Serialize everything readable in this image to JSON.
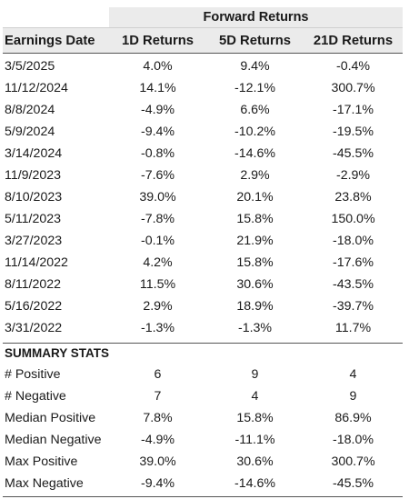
{
  "header": {
    "group_label": "Forward Returns",
    "columns": [
      "Earnings Date",
      "1D Returns",
      "5D Returns",
      "21D Returns"
    ]
  },
  "rows": [
    [
      "3/5/2025",
      "4.0%",
      "9.4%",
      "-0.4%"
    ],
    [
      "11/12/2024",
      "14.1%",
      "-12.1%",
      "300.7%"
    ],
    [
      "8/8/2024",
      "-4.9%",
      "6.6%",
      "-17.1%"
    ],
    [
      "5/9/2024",
      "-9.4%",
      "-10.2%",
      "-19.5%"
    ],
    [
      "3/14/2024",
      "-0.8%",
      "-14.6%",
      "-45.5%"
    ],
    [
      "11/9/2023",
      "-7.6%",
      "2.9%",
      "-2.9%"
    ],
    [
      "8/10/2023",
      "39.0%",
      "20.1%",
      "23.8%"
    ],
    [
      "5/11/2023",
      "-7.8%",
      "15.8%",
      "150.0%"
    ],
    [
      "3/27/2023",
      "-0.1%",
      "21.9%",
      "-18.0%"
    ],
    [
      "11/14/2022",
      "4.2%",
      "15.8%",
      "-17.6%"
    ],
    [
      "8/11/2022",
      "11.5%",
      "30.6%",
      "-43.5%"
    ],
    [
      "5/16/2022",
      "2.9%",
      "18.9%",
      "-39.7%"
    ],
    [
      "3/31/2022",
      "-1.3%",
      "-1.3%",
      "11.7%"
    ]
  ],
  "summary": {
    "title": "SUMMARY STATS",
    "rows": [
      [
        "# Positive",
        "6",
        "9",
        "4"
      ],
      [
        "# Negative",
        "7",
        "4",
        "9"
      ],
      [
        "Median Positive",
        "7.8%",
        "15.8%",
        "86.9%"
      ],
      [
        "Median Negative",
        "-4.9%",
        "-11.1%",
        "-18.0%"
      ],
      [
        "Max Positive",
        "39.0%",
        "30.6%",
        "300.7%"
      ],
      [
        "Max Negative",
        "-9.4%",
        "-14.6%",
        "-45.5%"
      ]
    ]
  }
}
